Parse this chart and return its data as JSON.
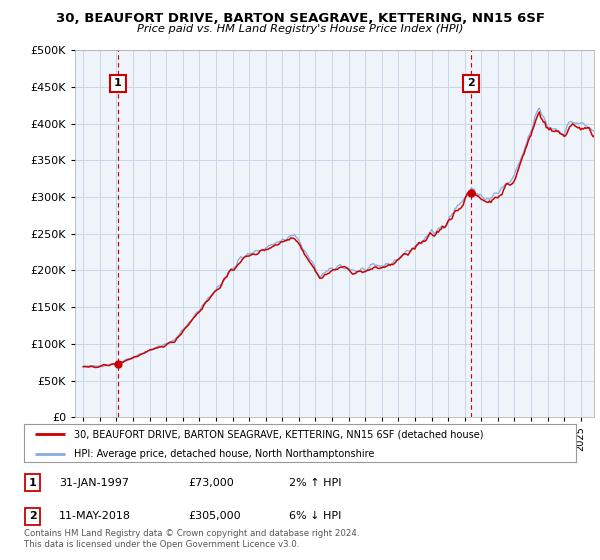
{
  "title": "30, BEAUFORT DRIVE, BARTON SEAGRAVE, KETTERING, NN15 6SF",
  "subtitle": "Price paid vs. HM Land Registry's House Price Index (HPI)",
  "legend_line1": "30, BEAUFORT DRIVE, BARTON SEAGRAVE, KETTERING, NN15 6SF (detached house)",
  "legend_line2": "HPI: Average price, detached house, North Northamptonshire",
  "annotation1_date": "31-JAN-1997",
  "annotation1_price": "£73,000",
  "annotation1_hpi": "2% ↑ HPI",
  "annotation2_date": "11-MAY-2018",
  "annotation2_price": "£305,000",
  "annotation2_hpi": "6% ↓ HPI",
  "footnote": "Contains HM Land Registry data © Crown copyright and database right 2024.\nThis data is licensed under the Open Government Licence v3.0.",
  "price_color": "#cc0000",
  "hpi_color": "#88aadd",
  "grid_color": "#c8d8e8",
  "bg_color": "#eef4fa",
  "annotation_box_color": "#cc0000",
  "sale1_year": 1997.08,
  "sale1_price": 73000,
  "sale2_year": 2018.37,
  "sale2_price": 305000
}
